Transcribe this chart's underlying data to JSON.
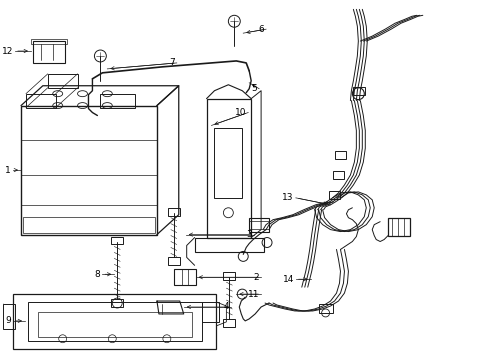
{
  "bg_color": "#ffffff",
  "line_color": "#1a1a1a",
  "fig_width": 4.9,
  "fig_height": 3.6,
  "dpi": 100,
  "label_fontsize": 6.5,
  "leader_lw": 0.5,
  "part_lw": 0.8
}
